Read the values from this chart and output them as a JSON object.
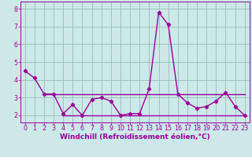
{
  "title": "",
  "xlabel": "Windchill (Refroidissement éolien,°C)",
  "x": [
    0,
    1,
    2,
    3,
    4,
    5,
    6,
    7,
    8,
    9,
    10,
    11,
    12,
    13,
    14,
    15,
    16,
    17,
    18,
    19,
    20,
    21,
    22,
    23
  ],
  "line1": [
    4.5,
    4.1,
    3.2,
    3.2,
    2.1,
    2.6,
    2.0,
    2.9,
    3.0,
    2.8,
    2.0,
    2.1,
    2.1,
    3.5,
    7.8,
    7.1,
    3.2,
    2.7,
    2.4,
    2.5,
    2.8,
    3.3,
    2.5,
    2.0
  ],
  "line2_x": [
    2,
    23
  ],
  "line2_y": [
    3.2,
    3.2
  ],
  "line3_x": [
    4,
    23
  ],
  "line3_y": [
    2.0,
    2.0
  ],
  "line_color": "#990099",
  "bg_color": "#cce8e8",
  "grid_color": "#99bbbb",
  "ylim": [
    1.6,
    8.4
  ],
  "xlim": [
    -0.5,
    23.5
  ],
  "yticks": [
    2,
    3,
    4,
    5,
    6,
    7,
    8
  ],
  "xticks": [
    0,
    1,
    2,
    3,
    4,
    5,
    6,
    7,
    8,
    9,
    10,
    11,
    12,
    13,
    14,
    15,
    16,
    17,
    18,
    19,
    20,
    21,
    22,
    23
  ],
  "marker": "D",
  "marker_size": 2.2,
  "line_width": 1.0,
  "xlabel_fontsize": 6.5,
  "tick_fontsize": 5.8
}
